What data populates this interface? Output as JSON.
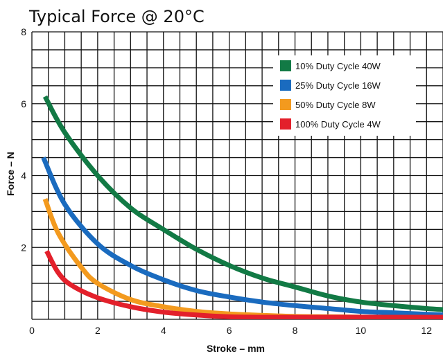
{
  "chart_data": {
    "type": "line",
    "title": "Typical Force @ 20°C",
    "xlabel": "Stroke – mm",
    "ylabel": "Force – N",
    "xlim": [
      0,
      12.5
    ],
    "ylim": [
      0,
      8
    ],
    "x_ticks": [
      {
        "value": 0,
        "label": "0"
      },
      {
        "value": 2,
        "label": "2"
      },
      {
        "value": 4,
        "label": "4"
      },
      {
        "value": 6,
        "label": "6"
      },
      {
        "value": 8,
        "label": "8"
      },
      {
        "value": 10,
        "label": "10"
      },
      {
        "value": 12,
        "label": "12"
      }
    ],
    "y_ticks": [
      {
        "value": 2,
        "label": "2"
      },
      {
        "value": 4,
        "label": "4"
      },
      {
        "value": 6,
        "label": "6"
      },
      {
        "value": 8,
        "label": "8"
      }
    ],
    "x_grid_step": 0.5,
    "y_grid_step": 0.5,
    "grid": true,
    "legend_position": "top-right",
    "series": [
      {
        "name": "10% Duty Cycle 40W",
        "color": "#127a45",
        "x": [
          0.4,
          1,
          2,
          3,
          4,
          5,
          6,
          7,
          8,
          9,
          10,
          11,
          12,
          12.5
        ],
        "y": [
          6.2,
          5.2,
          4.0,
          3.1,
          2.5,
          1.95,
          1.5,
          1.15,
          0.9,
          0.65,
          0.48,
          0.38,
          0.3,
          0.27
        ]
      },
      {
        "name": "25% Duty Cycle 16W",
        "color": "#1a6bbf",
        "x": [
          0.35,
          1,
          2,
          3,
          4,
          5,
          6,
          7,
          8,
          9,
          10,
          11,
          12,
          12.5
        ],
        "y": [
          4.5,
          3.2,
          2.1,
          1.5,
          1.1,
          0.8,
          0.62,
          0.48,
          0.38,
          0.3,
          0.22,
          0.18,
          0.14,
          0.12
        ]
      },
      {
        "name": "50% Duty Cycle 8W",
        "color": "#f39a1e",
        "x": [
          0.4,
          0.8,
          1.5,
          2,
          3,
          4,
          5,
          6,
          7,
          8,
          9,
          10,
          11,
          12,
          12.5
        ],
        "y": [
          3.35,
          2.4,
          1.45,
          1.0,
          0.55,
          0.35,
          0.22,
          0.15,
          0.11,
          0.08,
          0.07,
          0.06,
          0.05,
          0.05,
          0.05
        ]
      },
      {
        "name": "100% Duty Cycle 4W",
        "color": "#e3202b",
        "x": [
          0.45,
          0.8,
          1.2,
          2,
          3,
          4,
          5,
          6,
          7,
          8,
          9,
          10,
          11,
          12,
          12.5
        ],
        "y": [
          1.9,
          1.3,
          0.95,
          0.6,
          0.35,
          0.2,
          0.12,
          0.07,
          0.04,
          0.03,
          0.02,
          0.02,
          0.02,
          0.02,
          0.02
        ]
      }
    ]
  }
}
